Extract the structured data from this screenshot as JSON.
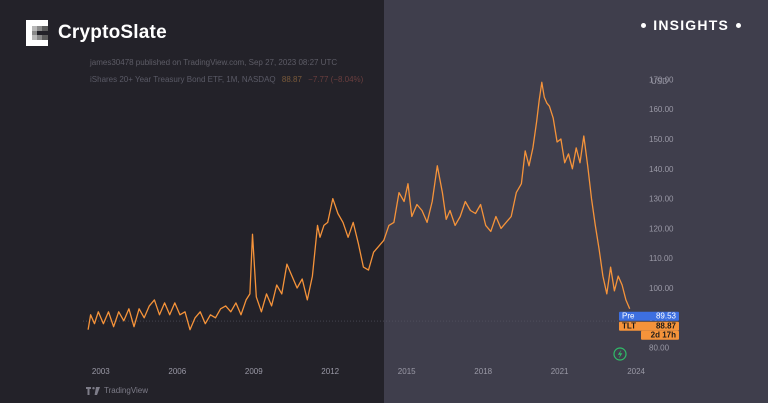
{
  "brand": {
    "name": "CryptoSlate",
    "badge": "INSIGHTS"
  },
  "colors": {
    "line": "#f5933a",
    "price_badge": "#f5933a",
    "pre_badge": "#3d6fe0",
    "left_panel": "#232229",
    "right_panel": "#3f3e4c"
  },
  "header": {
    "published": "james30478 published on TradingView.com, Sep 27, 2023 08:27 UTC",
    "symbol": "iShares 20+ Year Treasury Bond ETF, 1M, NASDAQ",
    "value": "88.87",
    "change": "−7.77 (−8.04%)"
  },
  "footer": {
    "logo_text": "TradingView"
  },
  "chart_data": {
    "type": "line",
    "currency": "USD",
    "x_ticks": [
      2003,
      2006,
      2009,
      2012,
      2015,
      2018,
      2021,
      2024
    ],
    "x_tick_labels": [
      "2003",
      "2006",
      "2009",
      "2012",
      "2015",
      "2018",
      "2021",
      "2024"
    ],
    "y_ticks": [
      80,
      90,
      100,
      110,
      120,
      130,
      140,
      150,
      160,
      170
    ],
    "y_tick_labels": [
      "80.00",
      "90.00",
      "100.00",
      "110.00",
      "120.00",
      "130.00",
      "140.00",
      "150.00",
      "160.00",
      "170.00"
    ],
    "xlim": [
      2002.3,
      2024.35
    ],
    "ylim": [
      76.5,
      176.5
    ],
    "series": [
      {
        "x": [
          2002.5,
          2002.6,
          2002.75,
          2002.9,
          2003.1,
          2003.3,
          2003.5,
          2003.7,
          2003.9,
          2004.1,
          2004.3,
          2004.5,
          2004.7,
          2004.9,
          2005.1,
          2005.3,
          2005.5,
          2005.7,
          2005.9,
          2006.1,
          2006.3,
          2006.5,
          2006.7,
          2006.9,
          2007.1,
          2007.3,
          2007.5,
          2007.7,
          2007.9,
          2008.1,
          2008.3,
          2008.5,
          2008.7,
          2008.85,
          2008.95,
          2009.1,
          2009.3,
          2009.5,
          2009.7,
          2009.9,
          2010.1,
          2010.3,
          2010.5,
          2010.7,
          2010.9,
          2011.1,
          2011.3,
          2011.5,
          2011.6,
          2011.75,
          2011.9,
          2012.1,
          2012.3,
          2012.5,
          2012.7,
          2012.9,
          2013.1,
          2013.3,
          2013.5,
          2013.7,
          2013.9,
          2014.1,
          2014.3,
          2014.5,
          2014.7,
          2014.9,
          2015.05,
          2015.2,
          2015.4,
          2015.6,
          2015.8,
          2016.0,
          2016.2,
          2016.4,
          2016.55,
          2016.7,
          2016.9,
          2017.1,
          2017.3,
          2017.5,
          2017.7,
          2017.9,
          2018.1,
          2018.3,
          2018.5,
          2018.7,
          2018.9,
          2019.1,
          2019.3,
          2019.5,
          2019.65,
          2019.8,
          2019.95,
          2020.1,
          2020.2,
          2020.3,
          2020.4,
          2020.5,
          2020.6,
          2020.75,
          2020.9,
          2021.05,
          2021.2,
          2021.35,
          2021.5,
          2021.65,
          2021.8,
          2021.95,
          2022.1,
          2022.25,
          2022.4,
          2022.55,
          2022.7,
          2022.85,
          2023.0,
          2023.15,
          2023.3,
          2023.45,
          2023.6,
          2023.75
        ],
        "y": [
          86,
          91,
          88,
          92,
          88,
          92,
          87,
          92,
          89,
          93,
          87,
          93,
          90,
          94,
          96,
          91,
          95,
          91,
          95,
          91,
          92,
          86,
          90,
          92,
          88,
          91,
          90,
          93,
          94,
          92,
          95,
          91,
          96,
          98,
          118,
          97,
          92,
          98,
          94,
          101,
          98,
          108,
          104,
          100,
          103,
          96,
          104,
          121,
          117,
          121,
          122,
          130,
          125,
          122,
          117,
          122,
          115,
          107,
          106,
          112,
          114,
          116,
          121,
          122,
          132,
          129,
          135,
          124,
          128,
          126,
          122,
          129,
          141,
          132,
          123,
          126,
          121,
          124,
          129,
          126,
          125,
          128,
          121,
          119,
          124,
          120,
          122,
          124,
          132,
          135,
          146,
          141,
          147,
          156,
          163,
          169,
          164,
          162,
          161,
          157,
          149,
          150,
          142,
          145,
          140,
          147,
          142,
          151,
          141,
          130,
          121,
          113,
          104,
          98,
          107,
          99,
          104,
          101,
          96,
          93
        ],
        "color": "#f5933a"
      }
    ],
    "last_price": {
      "label": "TLT",
      "value": "88.87",
      "countdown": "2d 17h",
      "y": 88.87
    },
    "pre_price": {
      "label": "Pre",
      "value": "89.53",
      "y": 89.53
    },
    "grid": false
  }
}
